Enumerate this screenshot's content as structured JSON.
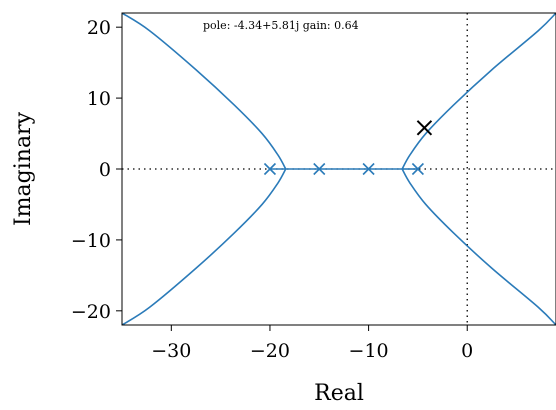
{
  "chart_data": {
    "type": "line",
    "title": "",
    "xlabel": "Real",
    "ylabel": "Imaginary",
    "xlim": [
      -35,
      9
    ],
    "ylim": [
      -22,
      22
    ],
    "xticks": [
      -30,
      -20,
      -10,
      0
    ],
    "yticks": [
      -20,
      -10,
      0,
      10,
      20
    ],
    "xtick_labels": [
      "−30",
      "−20",
      "−10",
      "0"
    ],
    "ytick_labels": [
      "−20",
      "−10",
      "0",
      "10",
      "20"
    ],
    "grid": false,
    "reference_lines": {
      "x": 0,
      "y": 0,
      "style": "dotted"
    },
    "open_loop_poles": [
      {
        "re": -20,
        "im": 0
      },
      {
        "re": -15,
        "im": 0
      },
      {
        "re": -10,
        "im": 0
      },
      {
        "re": -5,
        "im": 0
      }
    ],
    "branches": [
      {
        "x": [
          -20,
          -18.4
        ],
        "y": [
          0,
          0
        ]
      },
      {
        "x": [
          -15,
          -18.4
        ],
        "y": [
          0,
          0
        ]
      },
      {
        "x": [
          -10,
          -6.6
        ],
        "y": [
          0,
          0
        ]
      },
      {
        "x": [
          -5,
          -6.6
        ],
        "y": [
          0,
          0
        ]
      },
      {
        "x": [
          -15,
          -10
        ],
        "y": [
          0,
          0
        ]
      },
      {
        "x": [
          -18.4,
          -19.2,
          -20.8,
          -23.6,
          -27.5,
          -32.2,
          -35
        ],
        "y": [
          0,
          2,
          5,
          9,
          14,
          19.5,
          22
        ]
      },
      {
        "x": [
          -18.4,
          -19.2,
          -20.8,
          -23.6,
          -27.5,
          -32.2,
          -35
        ],
        "y": [
          0,
          -2,
          -5,
          -9,
          -14,
          -19.5,
          -22
        ]
      },
      {
        "x": [
          -6.6,
          -5.8,
          -4.2,
          -1.4,
          2.5,
          7.2,
          9
        ],
        "y": [
          0,
          2,
          5,
          9,
          14,
          19.5,
          22
        ]
      },
      {
        "x": [
          -6.6,
          -5.8,
          -4.2,
          -1.4,
          2.5,
          7.2,
          9
        ],
        "y": [
          0,
          -2,
          -5,
          -9,
          -14,
          -19.5,
          -22
        ]
      }
    ],
    "selected_pole": {
      "re": -4.34,
      "im": 5.81
    },
    "annotation": "pole: -4.34+5.81j gain: 0.64",
    "colors": {
      "locus": "#2b7bb9",
      "selected": "#000000",
      "axes": "#000000"
    }
  }
}
